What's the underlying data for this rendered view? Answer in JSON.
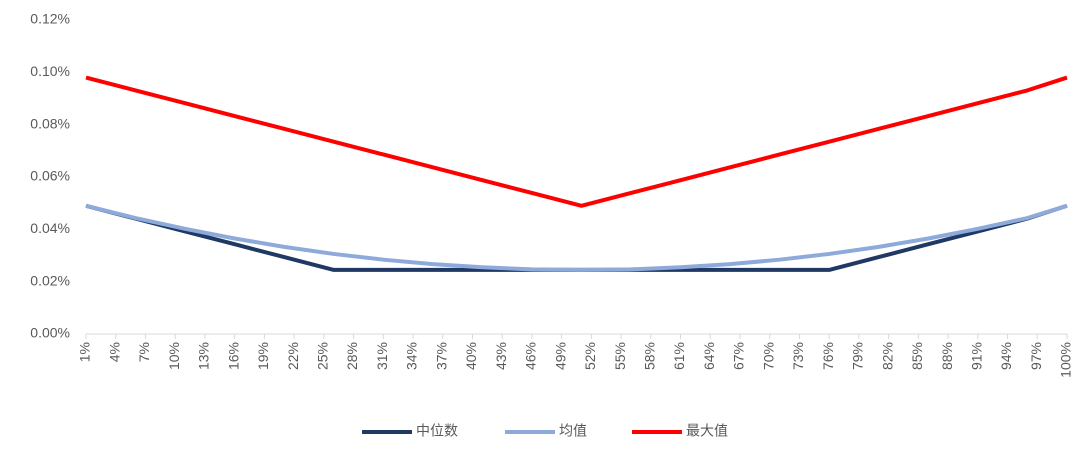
{
  "chart_data": {
    "type": "line",
    "x": [
      1,
      6,
      11,
      16,
      21,
      26,
      31,
      36,
      41,
      46,
      51,
      56,
      61,
      66,
      71,
      76,
      81,
      86,
      91,
      96,
      100
    ],
    "xlim": [
      1,
      100
    ],
    "xticks": [
      {
        "value": 1,
        "label": "1%"
      },
      {
        "value": 4,
        "label": "4%"
      },
      {
        "value": 7,
        "label": "7%"
      },
      {
        "value": 10,
        "label": "10%"
      },
      {
        "value": 13,
        "label": "13%"
      },
      {
        "value": 16,
        "label": "16%"
      },
      {
        "value": 19,
        "label": "19%"
      },
      {
        "value": 22,
        "label": "22%"
      },
      {
        "value": 25,
        "label": "25%"
      },
      {
        "value": 28,
        "label": "28%"
      },
      {
        "value": 31,
        "label": "31%"
      },
      {
        "value": 34,
        "label": "34%"
      },
      {
        "value": 37,
        "label": "37%"
      },
      {
        "value": 40,
        "label": "40%"
      },
      {
        "value": 43,
        "label": "43%"
      },
      {
        "value": 46,
        "label": "46%"
      },
      {
        "value": 49,
        "label": "49%"
      },
      {
        "value": 52,
        "label": "52%"
      },
      {
        "value": 55,
        "label": "55%"
      },
      {
        "value": 58,
        "label": "58%"
      },
      {
        "value": 61,
        "label": "61%"
      },
      {
        "value": 64,
        "label": "64%"
      },
      {
        "value": 67,
        "label": "67%"
      },
      {
        "value": 70,
        "label": "70%"
      },
      {
        "value": 73,
        "label": "73%"
      },
      {
        "value": 76,
        "label": "76%"
      },
      {
        "value": 79,
        "label": "79%"
      },
      {
        "value": 82,
        "label": "82%"
      },
      {
        "value": 85,
        "label": "85%"
      },
      {
        "value": 88,
        "label": "88%"
      },
      {
        "value": 91,
        "label": "91%"
      },
      {
        "value": 94,
        "label": "94%"
      },
      {
        "value": 97,
        "label": "97%"
      },
      {
        "value": 100,
        "label": "100%"
      }
    ],
    "ylim": [
      0,
      0.12
    ],
    "yticks": [
      {
        "value": 0,
        "label": "0.00%"
      },
      {
        "value": 0.02,
        "label": "0.02%"
      },
      {
        "value": 0.04,
        "label": "0.04%"
      },
      {
        "value": 0.06,
        "label": "0.06%"
      },
      {
        "value": 0.08,
        "label": "0.08%"
      },
      {
        "value": 0.1,
        "label": "0.10%"
      },
      {
        "value": 0.12,
        "label": "0.12%"
      }
    ],
    "grid": false,
    "legend": "bottom",
    "series": [
      {
        "name": "中位数",
        "color": "#1f3864",
        "values": [
          0.049,
          0.0441,
          0.0392,
          0.0343,
          0.0294,
          0.0245,
          0.0245,
          0.0245,
          0.0245,
          0.0245,
          0.0245,
          0.0245,
          0.0245,
          0.0245,
          0.0245,
          0.0245,
          0.0294,
          0.0343,
          0.0392,
          0.0441,
          0.049
        ]
      },
      {
        "name": "均值",
        "color": "#8eaadb",
        "values": [
          0.049,
          0.0443,
          0.0402,
          0.0365,
          0.0333,
          0.0306,
          0.0284,
          0.0267,
          0.0255,
          0.0247,
          0.0245,
          0.0247,
          0.0255,
          0.0267,
          0.0284,
          0.0306,
          0.0333,
          0.0365,
          0.0402,
          0.0443,
          0.049
        ]
      },
      {
        "name": "最大值",
        "color": "#ff0000",
        "values": [
          0.098,
          0.0931,
          0.0882,
          0.0833,
          0.0784,
          0.0735,
          0.0686,
          0.0637,
          0.0588,
          0.0539,
          0.049,
          0.0539,
          0.0588,
          0.0637,
          0.0686,
          0.0735,
          0.0784,
          0.0833,
          0.0882,
          0.0931,
          0.098
        ]
      }
    ]
  }
}
